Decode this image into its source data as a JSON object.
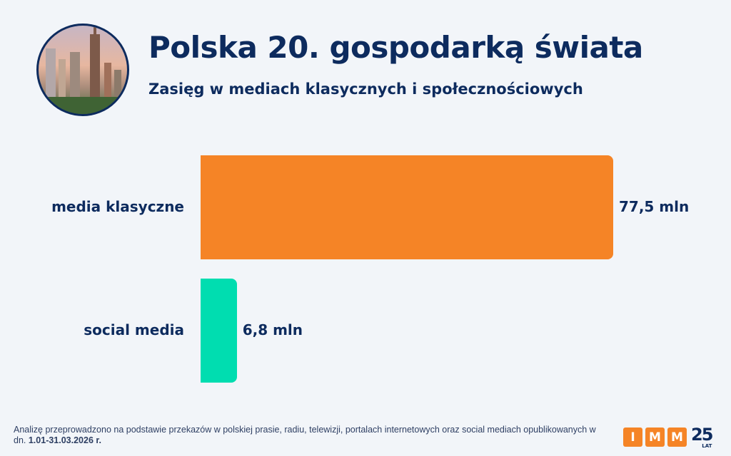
{
  "header": {
    "title": "Polska 20. gospodarką świata",
    "subtitle": "Zasięg w mediach klasycznych i społecznościowych"
  },
  "chart_data": {
    "type": "bar",
    "orientation": "horizontal",
    "categories": [
      "media klasyczne",
      "social media"
    ],
    "values": [
      77.5,
      6.8
    ],
    "value_labels": [
      "77,5 mln",
      "6,8 mln"
    ],
    "colors": [
      "#F58426",
      "#00DDB0"
    ],
    "unit": "mln",
    "xlim": [
      0,
      77.5
    ],
    "grid": false
  },
  "footer": {
    "note": "Analizę przeprowadzono na podstawie przekazów w polskiej prasie, radiu, telewizji, portalach internetowych oraz social mediach opublikowanych w dn. ",
    "period": "1.01-31.03.2026 r."
  },
  "logo": {
    "letters": [
      "I",
      "M",
      "M"
    ],
    "years": "25",
    "years_label": "LAT"
  }
}
